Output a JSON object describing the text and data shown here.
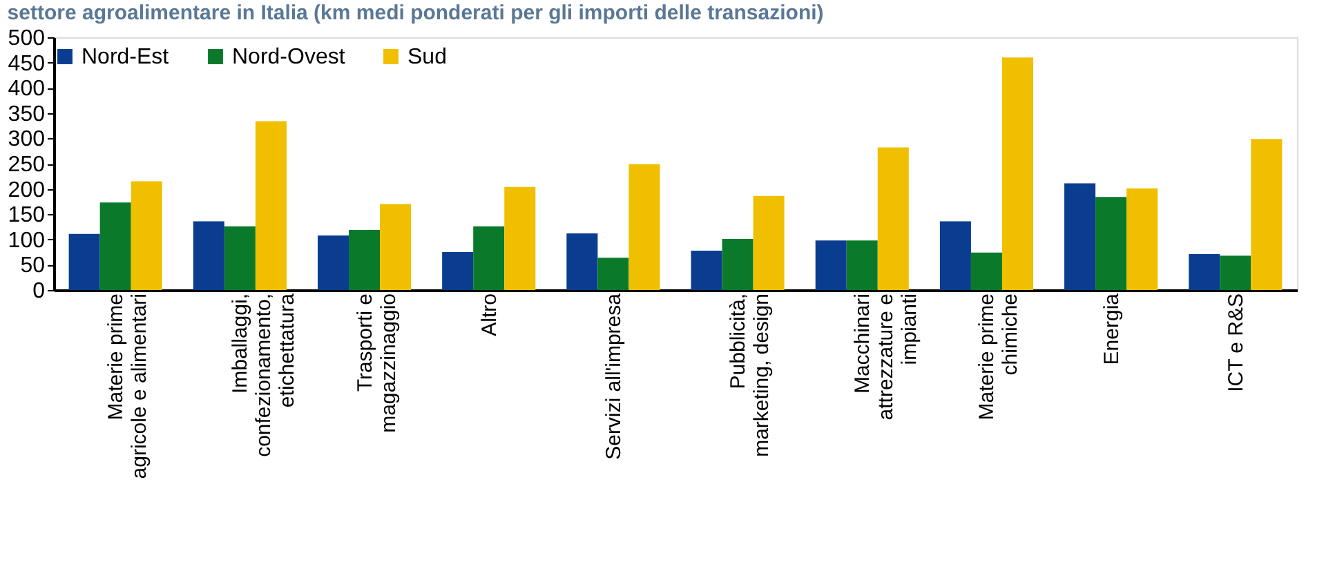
{
  "chart_data": {
    "type": "bar",
    "title": "settore agroalimentare in Italia (km medi ponderati per gli importi delle transazioni)",
    "categories": [
      "Materie prime\nagricole e alimentari",
      "Imballaggi,\nconfezionamento,\netichettatura",
      "Trasporti e\nmagazzinaggio",
      "Altro",
      "Servizi all'impresa",
      "Pubblicità,\nmarketing, design",
      "Macchinari\nattrezzature e\nimpianti",
      "Materie prime\nchimiche",
      "Energia",
      "ICT e R&S"
    ],
    "series": [
      {
        "name": "Nord-Est",
        "color": "#0a3d8f",
        "values": [
          111,
          136,
          108,
          75,
          112,
          78,
          98,
          136,
          211,
          71
        ]
      },
      {
        "name": "Nord-Ovest",
        "color": "#0a7a2a",
        "values": [
          173,
          126,
          119,
          126,
          64,
          101,
          98,
          74,
          184,
          68
        ]
      },
      {
        "name": "Sud",
        "color": "#f0c000",
        "values": [
          215,
          334,
          170,
          204,
          249,
          186,
          282,
          460,
          201,
          299
        ]
      }
    ],
    "ylim": [
      0,
      500
    ],
    "yticks": [
      0,
      50,
      100,
      150,
      200,
      250,
      300,
      350,
      400,
      450,
      500
    ],
    "grid": false,
    "legend": "top"
  }
}
